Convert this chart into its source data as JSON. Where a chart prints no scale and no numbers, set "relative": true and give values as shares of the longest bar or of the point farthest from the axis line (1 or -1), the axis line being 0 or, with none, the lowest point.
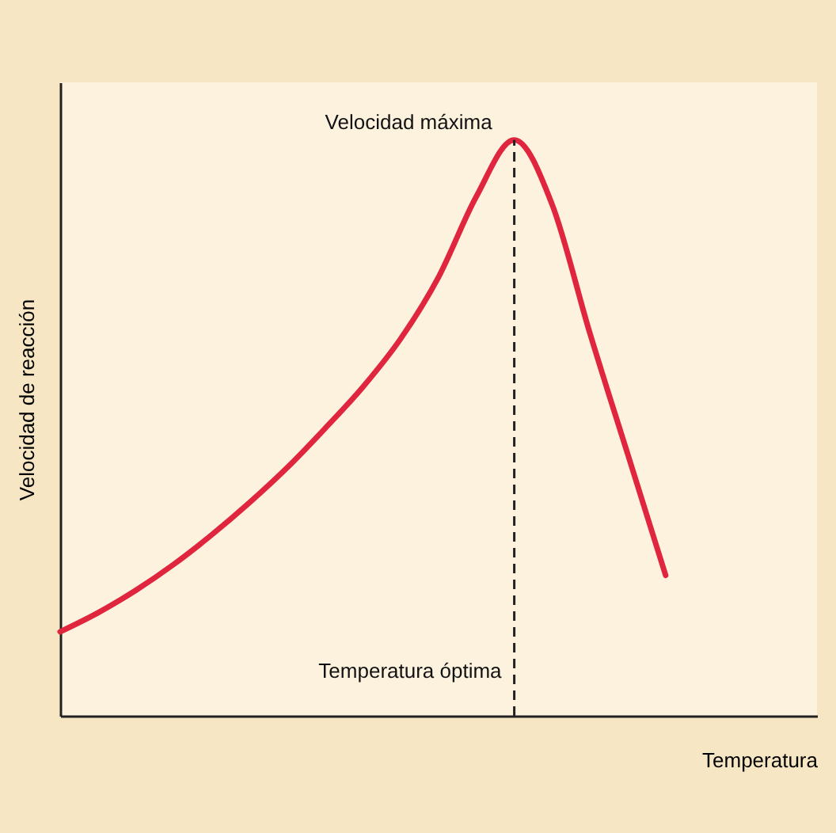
{
  "chart_data": {
    "type": "line",
    "relative": true,
    "xlabel": "Temperatura",
    "ylabel": "Velocidad de reacción",
    "categories": [
      null,
      null,
      null,
      null,
      null,
      null,
      null,
      null,
      null,
      null,
      null,
      null,
      null,
      null,
      null,
      null,
      null,
      null,
      null,
      null,
      null
    ],
    "series": [
      {
        "color": "#e0253f",
        "values": [
          0.146,
          0.179,
          0.218,
          0.263,
          0.314,
          0.37,
          0.431,
          0.499,
          0.571,
          0.655,
          0.762,
          0.902,
          1,
          0.888,
          0.664,
          0.454,
          0.244,
          null,
          null,
          null,
          null
        ]
      }
    ],
    "annotations": [
      "Velocidad máxima",
      "Temperatura óptima"
    ],
    "tick_labels": false,
    "grid": false,
    "marker": "none",
    "line_style": "solid"
  }
}
